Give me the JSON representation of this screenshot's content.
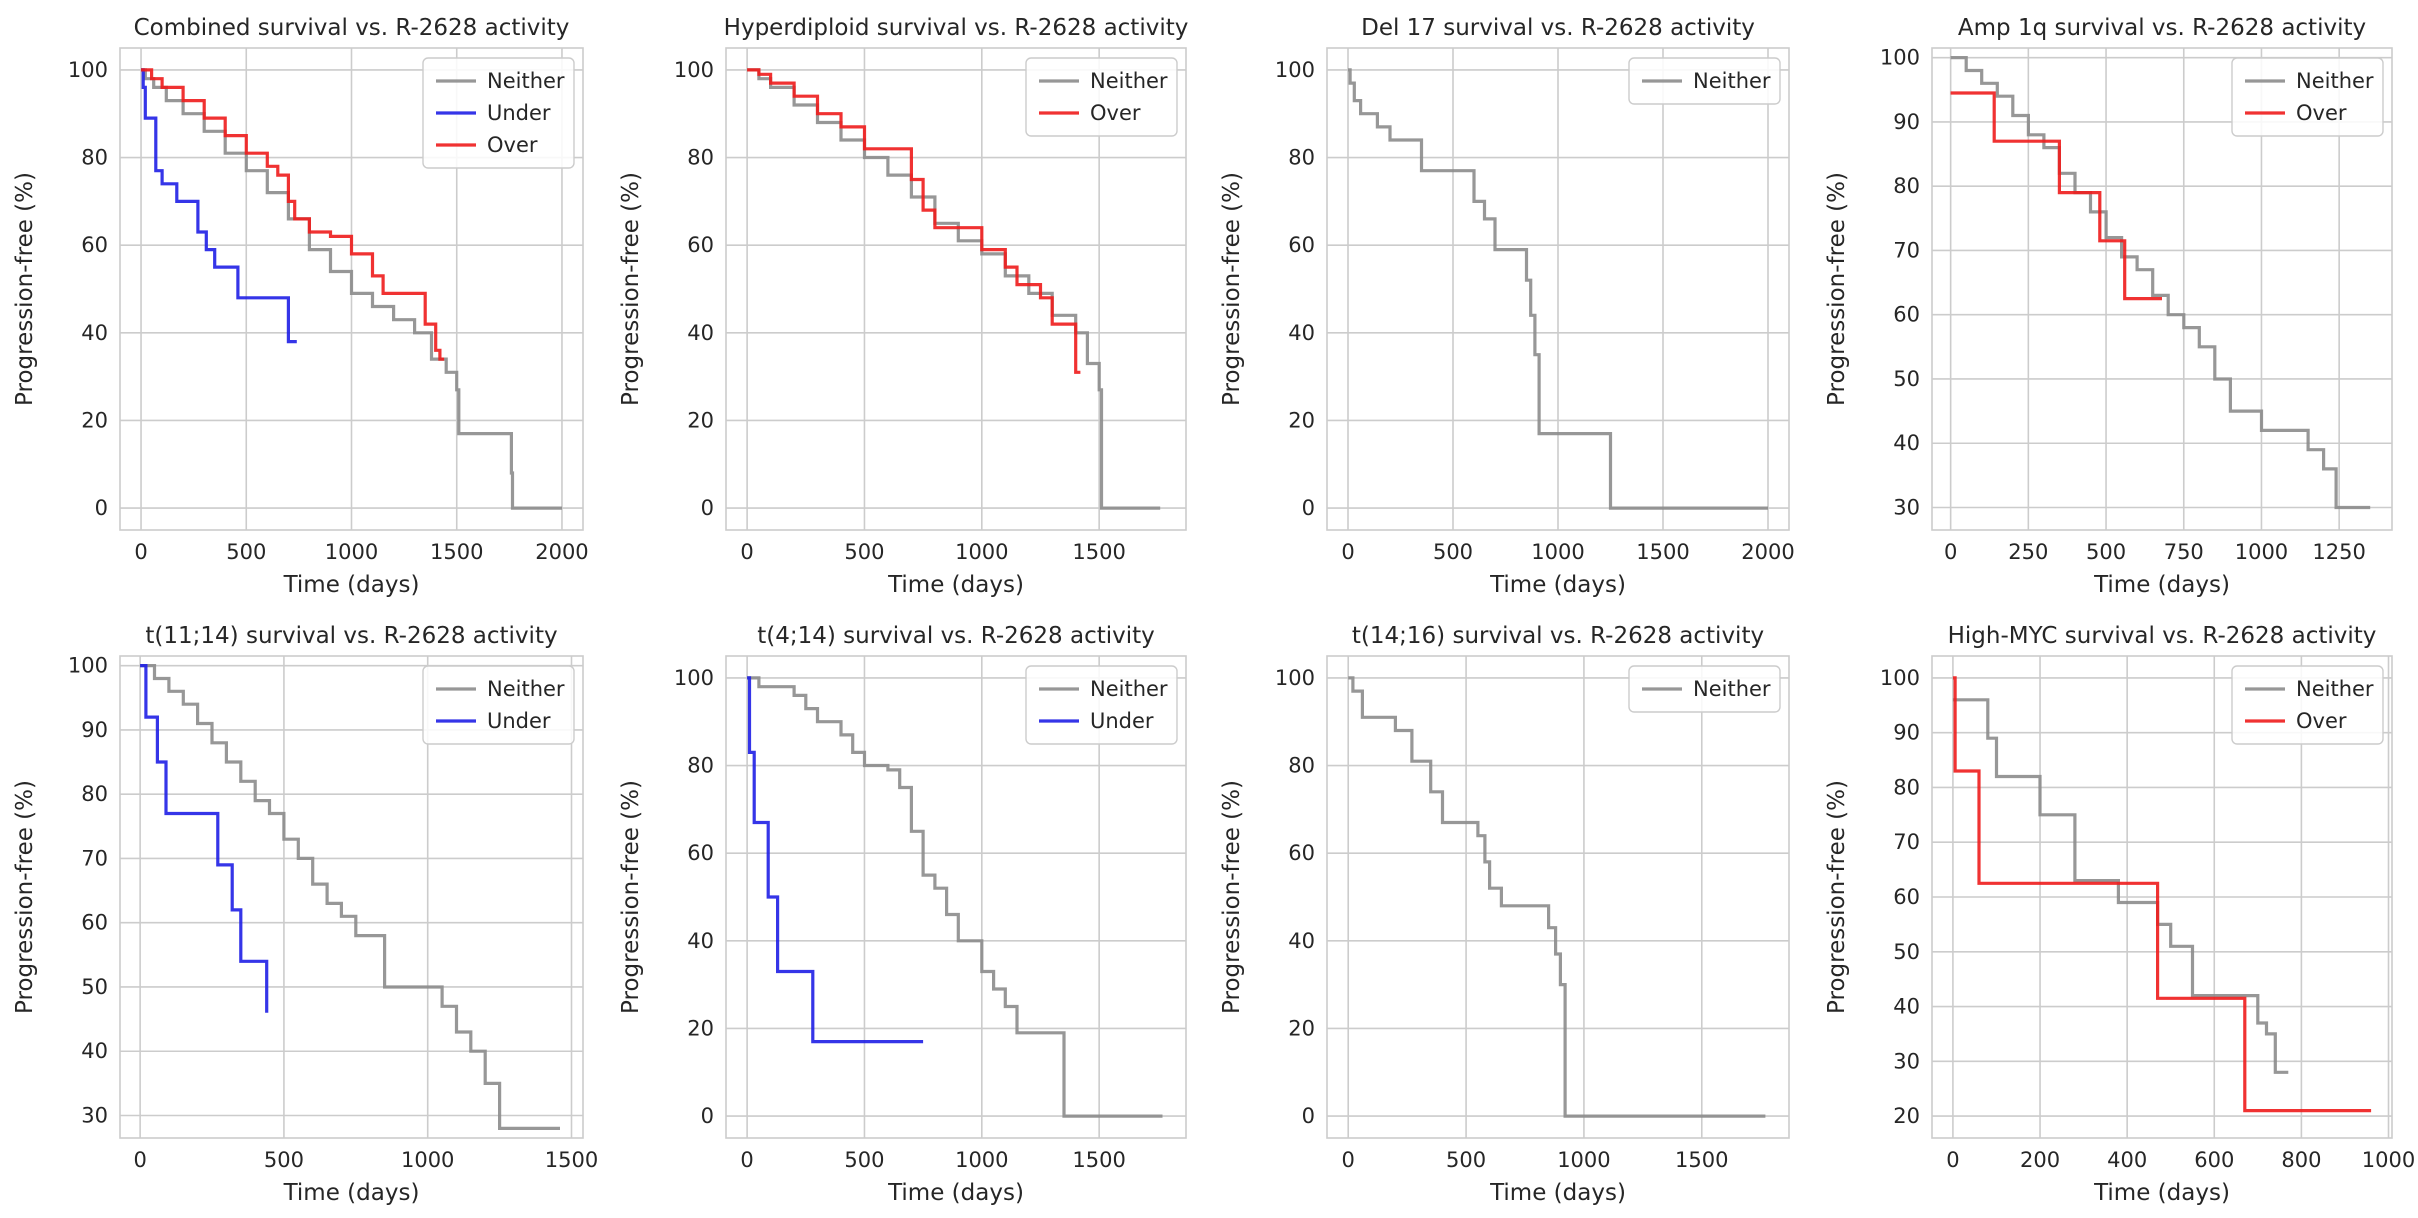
{
  "colors": {
    "Neither": "#8c8c8c",
    "Under": "#1f1fe6",
    "Over": "#ee1c1c"
  },
  "chart_data": [
    {
      "type": "line",
      "title": "Combined survival vs. R-2628 activity",
      "xlabel": "Time (days)",
      "ylabel": "Progression-free (%)",
      "xlim": [
        -100,
        2100
      ],
      "ylim": [
        -5,
        105
      ],
      "xticks": [
        0,
        500,
        1000,
        1500,
        2000
      ],
      "yticks": [
        0,
        20,
        40,
        60,
        80,
        100
      ],
      "grid": true,
      "legend": "top-right",
      "series": [
        {
          "name": "Neither",
          "x": [
            0,
            20,
            60,
            120,
            200,
            300,
            400,
            500,
            600,
            700,
            800,
            900,
            1000,
            1100,
            1200,
            1300,
            1380,
            1450,
            1500,
            1510,
            1760,
            1765,
            2000
          ],
          "y": [
            100,
            98,
            96,
            93,
            90,
            86,
            81,
            77,
            72,
            66,
            59,
            54,
            49,
            46,
            43,
            40,
            34,
            31,
            27,
            17,
            8,
            0,
            0
          ]
        },
        {
          "name": "Under",
          "x": [
            0,
            10,
            20,
            70,
            100,
            170,
            270,
            310,
            350,
            460,
            700,
            700,
            740
          ],
          "y": [
            100,
            96,
            89,
            77,
            74,
            70,
            63,
            59,
            55,
            48,
            44,
            38,
            38
          ]
        },
        {
          "name": "Over",
          "x": [
            0,
            50,
            100,
            200,
            300,
            400,
            500,
            600,
            650,
            700,
            730,
            800,
            900,
            1000,
            1100,
            1150,
            1250,
            1350,
            1400,
            1420,
            1440
          ],
          "y": [
            100,
            98,
            96,
            93,
            89,
            85,
            81,
            78,
            76,
            70,
            66,
            63,
            62,
            58,
            53,
            49,
            49,
            42,
            36,
            34,
            34
          ]
        }
      ]
    },
    {
      "type": "line",
      "title": "Hyperdiploid survival vs. R-2628 activity",
      "xlabel": "Time (days)",
      "ylabel": "Progression-free (%)",
      "xlim": [
        -90,
        1870
      ],
      "ylim": [
        -5,
        105
      ],
      "xticks": [
        0,
        500,
        1000,
        1500
      ],
      "yticks": [
        0,
        20,
        40,
        60,
        80,
        100
      ],
      "grid": true,
      "legend": "top-right",
      "series": [
        {
          "name": "Neither",
          "x": [
            0,
            50,
            100,
            200,
            300,
            400,
            500,
            600,
            700,
            800,
            900,
            1000,
            1100,
            1200,
            1300,
            1400,
            1450,
            1500,
            1510,
            1760
          ],
          "y": [
            100,
            98,
            96,
            92,
            88,
            84,
            80,
            76,
            71,
            65,
            61,
            58,
            53,
            49,
            44,
            40,
            33,
            27,
            0,
            0
          ]
        },
        {
          "name": "Over",
          "x": [
            0,
            50,
            100,
            200,
            300,
            400,
            500,
            700,
            750,
            800,
            1000,
            1100,
            1150,
            1250,
            1300,
            1350,
            1400,
            1420
          ],
          "y": [
            100,
            99,
            97,
            94,
            90,
            87,
            82,
            75,
            68,
            64,
            59,
            55,
            51,
            48,
            42,
            42,
            31,
            31
          ]
        }
      ]
    },
    {
      "type": "line",
      "title": "Del 17 survival vs. R-2628 activity",
      "xlabel": "Time (days)",
      "ylabel": "Progression-free (%)",
      "xlim": [
        -100,
        2100
      ],
      "ylim": [
        -5,
        105
      ],
      "xticks": [
        0,
        500,
        1000,
        1500,
        2000
      ],
      "yticks": [
        0,
        20,
        40,
        60,
        80,
        100
      ],
      "grid": true,
      "legend": "top-right",
      "series": [
        {
          "name": "Neither",
          "x": [
            0,
            10,
            30,
            60,
            100,
            140,
            200,
            350,
            550,
            600,
            650,
            700,
            850,
            870,
            890,
            910,
            1250,
            2000
          ],
          "y": [
            100,
            97,
            93,
            90,
            90,
            87,
            84,
            77,
            77,
            70,
            66,
            59,
            52,
            44,
            35,
            17,
            0,
            0
          ]
        }
      ]
    },
    {
      "type": "line",
      "title": "Amp 1q survival vs. R-2628 activity",
      "xlabel": "Time (days)",
      "ylabel": "Progression-free (%)",
      "xlim": [
        -60,
        1420
      ],
      "ylim": [
        26.5,
        101.5
      ],
      "xticks": [
        0,
        250,
        500,
        750,
        1000,
        1250
      ],
      "yticks": [
        30,
        40,
        50,
        60,
        70,
        80,
        90,
        100
      ],
      "grid": true,
      "legend": "top-right",
      "series": [
        {
          "name": "Neither",
          "x": [
            0,
            50,
            100,
            150,
            200,
            250,
            300,
            350,
            400,
            450,
            500,
            550,
            600,
            650,
            700,
            750,
            800,
            850,
            900,
            1000,
            1150,
            1200,
            1240,
            1260,
            1350
          ],
          "y": [
            100,
            98,
            96,
            94,
            91,
            88,
            86,
            82,
            79,
            76,
            72,
            69,
            67,
            63,
            60,
            58,
            55,
            50,
            45,
            42,
            39,
            36,
            30,
            30,
            30
          ]
        },
        {
          "name": "Over",
          "x": [
            0,
            140,
            350,
            480,
            560,
            680
          ],
          "y": [
            94.5,
            87,
            79,
            71.5,
            62.5,
            62.5
          ]
        }
      ]
    },
    {
      "type": "line",
      "title": "t(11;14) survival vs. R-2628 activity",
      "xlabel": "Time (days)",
      "ylabel": "Progression-free (%)",
      "xlim": [
        -70,
        1540
      ],
      "ylim": [
        26.5,
        101.5
      ],
      "xticks": [
        0,
        500,
        1000,
        1500
      ],
      "yticks": [
        30,
        40,
        50,
        60,
        70,
        80,
        90,
        100
      ],
      "grid": true,
      "legend": "top-right",
      "series": [
        {
          "name": "Neither",
          "x": [
            0,
            50,
            100,
            150,
            200,
            250,
            300,
            350,
            400,
            450,
            500,
            550,
            600,
            650,
            700,
            750,
            850,
            1050,
            1100,
            1150,
            1200,
            1250,
            1460
          ],
          "y": [
            100,
            98,
            96,
            94,
            91,
            88,
            85,
            82,
            79,
            77,
            73,
            70,
            66,
            63,
            61,
            58,
            50,
            47,
            43,
            40,
            35,
            28,
            28
          ]
        },
        {
          "name": "Under",
          "x": [
            0,
            20,
            60,
            90,
            270,
            320,
            350,
            440
          ],
          "y": [
            100,
            92,
            85,
            77,
            69,
            62,
            54,
            46
          ]
        }
      ]
    },
    {
      "type": "line",
      "title": "t(4;14) survival vs. R-2628 activity",
      "xlabel": "Time (days)",
      "ylabel": "Progression-free (%)",
      "xlim": [
        -90,
        1870
      ],
      "ylim": [
        -5,
        105
      ],
      "xticks": [
        0,
        500,
        1000,
        1500
      ],
      "yticks": [
        0,
        20,
        40,
        60,
        80,
        100
      ],
      "grid": true,
      "legend": "top-right",
      "series": [
        {
          "name": "Neither",
          "x": [
            0,
            50,
            150,
            200,
            250,
            300,
            400,
            450,
            500,
            600,
            650,
            700,
            750,
            800,
            850,
            900,
            1000,
            1050,
            1100,
            1150,
            1350,
            1770
          ],
          "y": [
            100,
            98,
            98,
            96,
            93,
            90,
            87,
            83,
            80,
            79,
            75,
            65,
            55,
            52,
            46,
            40,
            33,
            29,
            25,
            19,
            0,
            0
          ]
        },
        {
          "name": "Under",
          "x": [
            0,
            10,
            30,
            90,
            130,
            280,
            750
          ],
          "y": [
            100,
            83,
            67,
            50,
            33,
            17,
            17
          ]
        }
      ]
    },
    {
      "type": "line",
      "title": "t(14;16) survival vs. R-2628 activity",
      "xlabel": "Time (days)",
      "ylabel": "Progression-free (%)",
      "xlim": [
        -90,
        1870
      ],
      "ylim": [
        -5,
        105
      ],
      "xticks": [
        0,
        500,
        1000,
        1500
      ],
      "yticks": [
        0,
        20,
        40,
        60,
        80,
        100
      ],
      "grid": true,
      "legend": "top-right",
      "series": [
        {
          "name": "Neither",
          "x": [
            0,
            20,
            60,
            200,
            270,
            350,
            400,
            550,
            580,
            600,
            650,
            850,
            880,
            900,
            920,
            1770
          ],
          "y": [
            100,
            97,
            91,
            88,
            81,
            74,
            67,
            64,
            58,
            52,
            48,
            43,
            37,
            30,
            0,
            0
          ]
        }
      ]
    },
    {
      "type": "line",
      "title": "High-MYC survival vs. R-2628 activity",
      "xlabel": "Time (days)",
      "ylabel": "Progression-free (%)",
      "xlim": [
        -48,
        1008
      ],
      "ylim": [
        16,
        104
      ],
      "xticks": [
        0,
        200,
        400,
        600,
        800,
        1000
      ],
      "yticks": [
        20,
        30,
        40,
        50,
        60,
        70,
        80,
        90,
        100
      ],
      "grid": true,
      "legend": "top-right",
      "series": [
        {
          "name": "Neither",
          "x": [
            0,
            80,
            100,
            150,
            200,
            280,
            300,
            380,
            470,
            500,
            550,
            620,
            700,
            720,
            740,
            770
          ],
          "y": [
            96,
            89,
            82,
            82,
            75,
            63,
            63,
            59,
            55,
            51,
            42,
            42,
            37,
            35,
            28,
            28
          ]
        },
        {
          "name": "Over",
          "x": [
            0,
            5,
            60,
            470,
            670,
            960
          ],
          "y": [
            100,
            83,
            62.5,
            41.5,
            21,
            21
          ]
        }
      ]
    }
  ]
}
